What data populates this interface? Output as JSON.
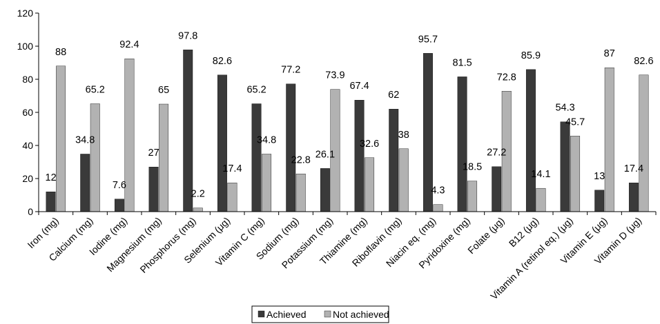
{
  "chart_data": {
    "type": "bar",
    "categories": [
      "Iron (mg)",
      "Calcium (mg)",
      "Iodine (mg)",
      "Magnesium (mg)",
      "Phosphorus (mg)",
      "Selenium (μg)",
      "Vitamin C (mg)",
      "Sodium (mg)",
      "Potassium (mg)",
      "Thiamine (mg)",
      "Riboflavin (mg)",
      "Niacin eq. (mg)",
      "Pyridoxine (mg)",
      "Folate (μg)",
      "B12 (μg)",
      "Vitamin A (retinol eq.) (μg)",
      "Vitamin E (μg)",
      "Vitamin D (μg)"
    ],
    "series": [
      {
        "name": "Achieved",
        "color": "#3a3a3a",
        "values": [
          12,
          34.8,
          7.6,
          27,
          97.8,
          82.6,
          65.2,
          77.2,
          26.1,
          67.4,
          62,
          95.7,
          81.5,
          27.2,
          85.9,
          54.3,
          13,
          17.4
        ]
      },
      {
        "name": "Not achieved",
        "color": "#b2b2b2",
        "values": [
          88,
          65.2,
          92.4,
          65,
          2.2,
          17.4,
          34.8,
          22.8,
          73.9,
          32.6,
          38,
          4.3,
          18.5,
          72.8,
          14.1,
          45.7,
          87,
          82.6
        ]
      }
    ],
    "yticks": [
      "0",
      "20",
      "40",
      "60",
      "80",
      "100",
      "120"
    ],
    "ylim": [
      0,
      120
    ],
    "xlabel": "",
    "ylabel": "",
    "title": "",
    "grid": false,
    "legend": "bottom"
  }
}
